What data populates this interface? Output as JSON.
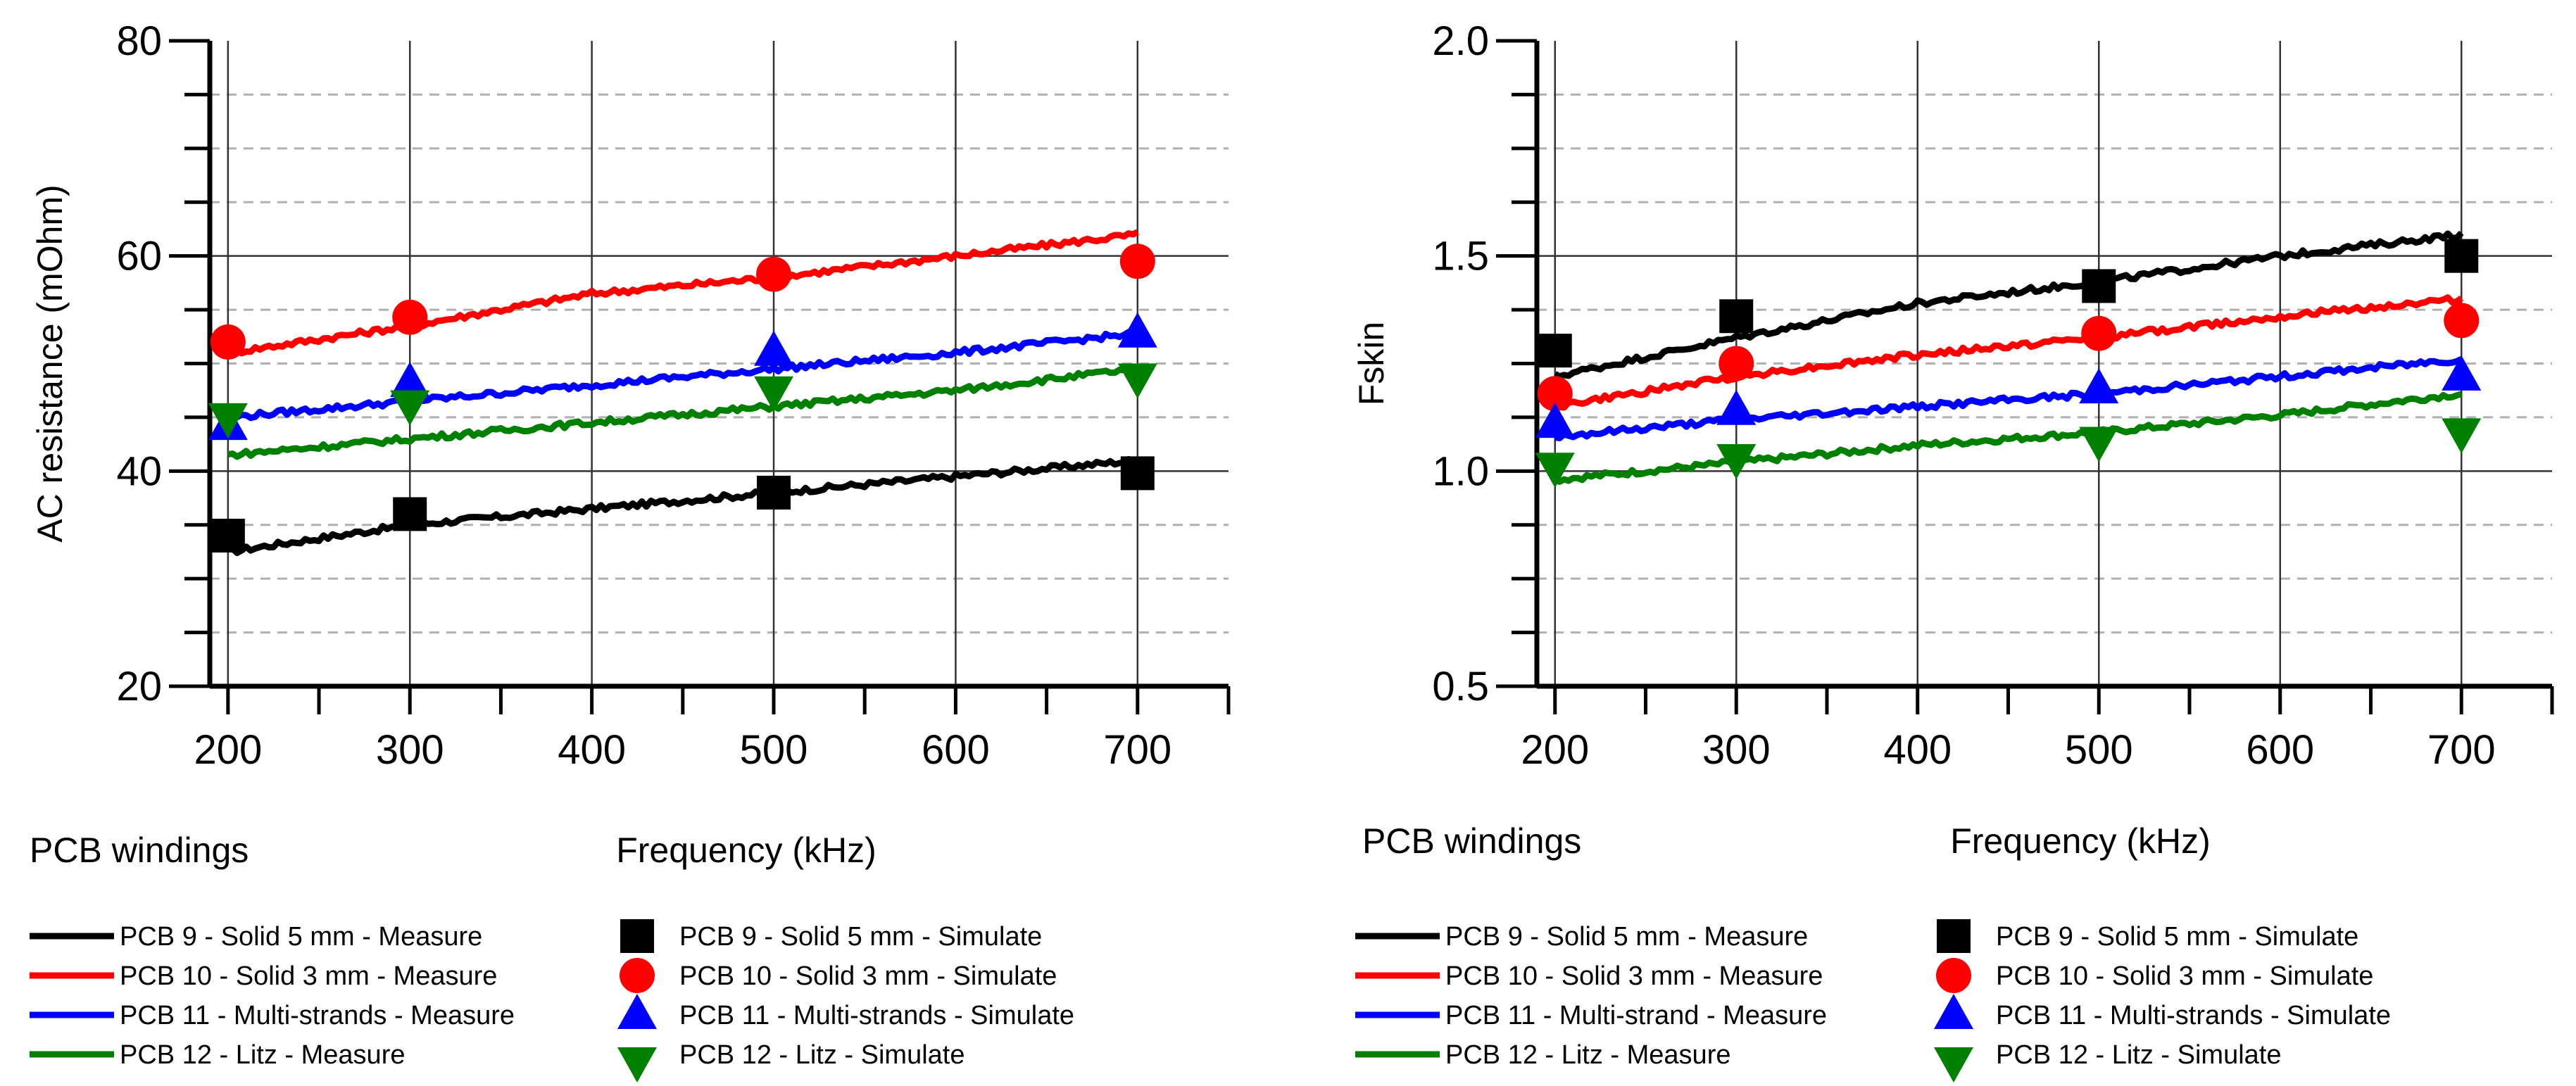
{
  "colors": {
    "black": "#000000",
    "red": "#ff0000",
    "blue": "#0000ff",
    "green": "#008000"
  },
  "chart_data": [
    {
      "type": "line",
      "title": "",
      "xlabel": "Frequency (kHz)",
      "ylabel": "AC resistance (mOhm)",
      "note": "PCB windings",
      "xlim": [
        190,
        750
      ],
      "ylim": [
        20,
        80
      ],
      "x_ticks": [
        "200",
        "300",
        "400",
        "500",
        "600",
        "700"
      ],
      "y_ticks": [
        "20",
        "40",
        "60",
        "80"
      ],
      "measure_series": [
        {
          "name": "PCB 9 - Solid 5 mm -  Measure",
          "color": "#000000",
          "x": [
            200,
            300,
            400,
            500,
            600,
            700
          ],
          "y": [
            32.5,
            35,
            36.5,
            38,
            39.5,
            41
          ]
        },
        {
          "name": "PCB 10 - Solid 3 mm -  Measure",
          "color": "#ff0000",
          "x": [
            200,
            300,
            400,
            500,
            600,
            700
          ],
          "y": [
            51,
            53.5,
            56.5,
            58,
            60,
            62
          ]
        },
        {
          "name": "PCB 11 - Multi-strands - Measure",
          "color": "#0000ff",
          "x": [
            200,
            300,
            400,
            500,
            600,
            700
          ],
          "y": [
            45,
            46.5,
            48,
            49.5,
            51,
            52.8
          ]
        },
        {
          "name": "PCB 12 - Litz - Measure",
          "color": "#008000",
          "x": [
            200,
            300,
            400,
            500,
            600,
            700
          ],
          "y": [
            41.5,
            43,
            44.5,
            46,
            47.5,
            49.5
          ]
        }
      ],
      "simulate_series": [
        {
          "name": "PCB 9 - Solid 5 mm - Simulate",
          "marker": "square",
          "color": "#000000",
          "x": [
            200,
            300,
            500,
            700
          ],
          "y": [
            34,
            36,
            38,
            39.8
          ]
        },
        {
          "name": "PCB 10 - Solid 3 mm - Simulate",
          "marker": "circle",
          "color": "#ff0000",
          "x": [
            200,
            300,
            500,
            700
          ],
          "y": [
            52,
            54.3,
            58.3,
            59.5
          ]
        },
        {
          "name": "PCB 11 - Multi-strands - Simulate",
          "marker": "triangle-up",
          "color": "#0000ff",
          "x": [
            200,
            300,
            500,
            700
          ],
          "y": [
            44.2,
            48.2,
            51.1,
            52.8
          ]
        },
        {
          "name": "PCB 12 - Litz - Simulate",
          "marker": "triangle-down",
          "color": "#008000",
          "x": [
            200,
            300,
            500,
            700
          ],
          "y": [
            45,
            46.2,
            47.5,
            48.7
          ]
        }
      ]
    },
    {
      "type": "line",
      "title": "",
      "xlabel": "Frequency (kHz)",
      "ylabel": "Fskin",
      "note": "PCB windings",
      "xlim": [
        190,
        750
      ],
      "ylim": [
        0.5,
        2.0
      ],
      "x_ticks": [
        "200",
        "300",
        "400",
        "500",
        "600",
        "700"
      ],
      "y_ticks": [
        "0.5",
        "1.0",
        "1.5",
        "2.0"
      ],
      "measure_series": [
        {
          "name": "PCB 9 - Solid 5 mm - Measure",
          "color": "#000000",
          "x": [
            200,
            300,
            400,
            500,
            600,
            700
          ],
          "y": [
            1.22,
            1.31,
            1.39,
            1.44,
            1.5,
            1.55
          ]
        },
        {
          "name": "PCB 10 - Solid 3 mm - Measure",
          "color": "#ff0000",
          "x": [
            200,
            300,
            400,
            500,
            600,
            700
          ],
          "y": [
            1.15,
            1.22,
            1.27,
            1.31,
            1.36,
            1.4
          ]
        },
        {
          "name": "PCB 11 - Multi-strand - Measure",
          "color": "#0000ff",
          "x": [
            200,
            300,
            400,
            500,
            600,
            700
          ],
          "y": [
            1.08,
            1.12,
            1.15,
            1.18,
            1.22,
            1.26
          ]
        },
        {
          "name": "PCB 12 - Litz - Measure",
          "color": "#008000",
          "x": [
            200,
            300,
            400,
            500,
            600,
            700
          ],
          "y": [
            0.98,
            1.02,
            1.06,
            1.09,
            1.13,
            1.18
          ]
        }
      ],
      "simulate_series": [
        {
          "name": "PCB 9 - Solid 5 mm - Simulate",
          "marker": "square",
          "color": "#000000",
          "x": [
            200,
            300,
            500,
            700
          ],
          "y": [
            1.28,
            1.36,
            1.43,
            1.5
          ]
        },
        {
          "name": "PCB 10 - Solid 3 mm - Simulate",
          "marker": "circle",
          "color": "#ff0000",
          "x": [
            200,
            300,
            500,
            700
          ],
          "y": [
            1.18,
            1.25,
            1.32,
            1.35
          ]
        },
        {
          "name": "PCB 11 - Multi-strands - Simulate",
          "marker": "triangle-up",
          "color": "#0000ff",
          "x": [
            200,
            300,
            500,
            700
          ],
          "y": [
            1.11,
            1.14,
            1.19,
            1.22
          ]
        },
        {
          "name": "PCB 12 - Litz - Simulate",
          "marker": "triangle-down",
          "color": "#008000",
          "x": [
            200,
            300,
            500,
            700
          ],
          "y": [
            1.01,
            1.03,
            1.07,
            1.09
          ]
        }
      ]
    }
  ]
}
